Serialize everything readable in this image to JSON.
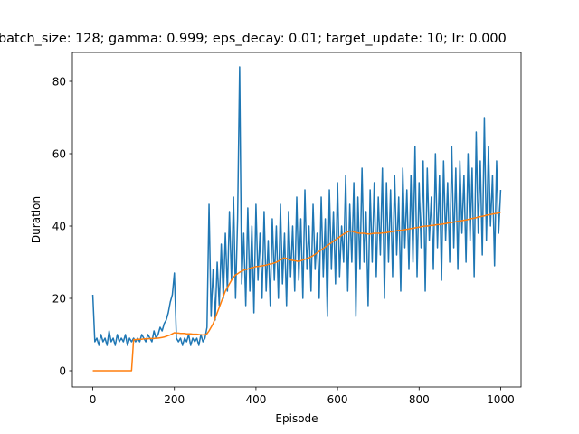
{
  "chart_data": {
    "type": "line",
    "title": "batch_size: 128; gamma: 0.999; eps_decay: 0.01; target_update: 10; lr: 0.000",
    "x_label": "Episode",
    "y_label": "Duration",
    "x": [
      0,
      5,
      10,
      15,
      20,
      25,
      30,
      35,
      40,
      45,
      50,
      55,
      60,
      65,
      70,
      75,
      80,
      85,
      90,
      95,
      100,
      105,
      110,
      115,
      120,
      125,
      130,
      135,
      140,
      145,
      150,
      155,
      160,
      165,
      170,
      175,
      180,
      185,
      190,
      195,
      200,
      205,
      210,
      215,
      220,
      225,
      230,
      235,
      240,
      245,
      250,
      255,
      260,
      265,
      270,
      275,
      280,
      285,
      290,
      295,
      300,
      305,
      310,
      315,
      320,
      325,
      330,
      335,
      340,
      345,
      350,
      355,
      360,
      365,
      370,
      375,
      380,
      385,
      390,
      395,
      400,
      405,
      410,
      415,
      420,
      425,
      430,
      435,
      440,
      445,
      450,
      455,
      460,
      465,
      470,
      475,
      480,
      485,
      490,
      495,
      500,
      505,
      510,
      515,
      520,
      525,
      530,
      535,
      540,
      545,
      550,
      555,
      560,
      565,
      570,
      575,
      580,
      585,
      590,
      595,
      600,
      605,
      610,
      615,
      620,
      625,
      630,
      635,
      640,
      645,
      650,
      655,
      660,
      665,
      670,
      675,
      680,
      685,
      690,
      695,
      700,
      705,
      710,
      715,
      720,
      725,
      730,
      735,
      740,
      745,
      750,
      755,
      760,
      765,
      770,
      775,
      780,
      785,
      790,
      795,
      800,
      805,
      810,
      815,
      820,
      825,
      830,
      835,
      840,
      845,
      850,
      855,
      860,
      865,
      870,
      875,
      880,
      885,
      890,
      895,
      900,
      905,
      910,
      915,
      920,
      925,
      930,
      935,
      940,
      945,
      950,
      955,
      960,
      965,
      970,
      975,
      980,
      985,
      990,
      995,
      1000
    ],
    "series": [
      {
        "color": "#1f77b4",
        "values": [
          21,
          8,
          9,
          7,
          10,
          8,
          9,
          7,
          11,
          8,
          9,
          7,
          10,
          8,
          9,
          8,
          10,
          7,
          9,
          8,
          9,
          8,
          9,
          8,
          10,
          9,
          8,
          10,
          9,
          8,
          11,
          9,
          10,
          12,
          11,
          13,
          14,
          16,
          19,
          21,
          27,
          9,
          8,
          9,
          7,
          9,
          8,
          10,
          7,
          9,
          8,
          9,
          7,
          10,
          8,
          9,
          12,
          46,
          15,
          28,
          14,
          30,
          18,
          35,
          20,
          38,
          22,
          44,
          25,
          48,
          20,
          42,
          84,
          24,
          38,
          18,
          45,
          22,
          40,
          16,
          46,
          25,
          38,
          20,
          44,
          22,
          36,
          18,
          42,
          25,
          40,
          20,
          46,
          24,
          38,
          18,
          44,
          26,
          40,
          22,
          48,
          25,
          42,
          20,
          50,
          28,
          40,
          22,
          46,
          28,
          38,
          20,
          48,
          26,
          42,
          15,
          50,
          28,
          44,
          24,
          52,
          26,
          40,
          30,
          54,
          22,
          46,
          30,
          52,
          15,
          48,
          28,
          56,
          30,
          44,
          18,
          50,
          30,
          52,
          26,
          48,
          32,
          56,
          20,
          52,
          30,
          50,
          26,
          54,
          32,
          48,
          22,
          56,
          34,
          50,
          28,
          54,
          30,
          62,
          26,
          52,
          34,
          58,
          22,
          56,
          36,
          48,
          28,
          60,
          34,
          54,
          25,
          58,
          36,
          52,
          30,
          62,
          34,
          56,
          28,
          58,
          38,
          54,
          30,
          60,
          36,
          56,
          26,
          66,
          38,
          58,
          32,
          70,
          36,
          62,
          40,
          54,
          29,
          58,
          38,
          50
        ]
      },
      {
        "color": "#ff7f0e",
        "values": [
          0,
          0,
          0,
          0,
          0,
          0,
          0,
          0,
          0,
          0,
          0,
          0,
          0,
          0,
          0,
          0,
          0,
          0,
          0,
          0,
          8.6,
          8.6,
          8.7,
          8.7,
          8.7,
          8.8,
          8.8,
          8.8,
          8.9,
          8.9,
          8.9,
          9,
          9,
          9.1,
          9.2,
          9.3,
          9.5,
          9.7,
          9.9,
          10.2,
          10.5,
          10.4,
          10.4,
          10.3,
          10.3,
          10.3,
          10.2,
          10.2,
          10.2,
          10.1,
          10.1,
          10.1,
          10,
          9.9,
          9.9,
          9.9,
          10.2,
          11,
          12,
          13,
          14.5,
          16,
          17.5,
          19,
          20.5,
          22,
          23,
          24,
          25,
          25.8,
          26.5,
          26.8,
          27.2,
          27.5,
          27.8,
          28,
          28.1,
          28.3,
          28.5,
          28.6,
          28.8,
          28.8,
          28.9,
          29,
          29.1,
          29.2,
          29.4,
          29.5,
          29.6,
          29.8,
          30,
          30.3,
          30.6,
          31,
          31.2,
          31,
          30.8,
          30.6,
          30.5,
          30.4,
          30.3,
          30.2,
          30.4,
          30.6,
          30.8,
          31,
          31.2,
          31.5,
          31.8,
          32.2,
          32.6,
          33,
          33.4,
          33.8,
          34.2,
          34.6,
          35,
          35.4,
          35.8,
          36.2,
          36.6,
          37,
          37.4,
          37.8,
          38.1,
          38.4,
          38.6,
          38.6,
          38.4,
          38.2,
          38.1,
          38,
          38,
          38,
          37.9,
          37.8,
          37.8,
          37.9,
          38,
          38,
          38,
          38,
          38.1,
          38.1,
          38.2,
          38.3,
          38.4,
          38.5,
          38.6,
          38.7,
          38.8,
          38.8,
          38.9,
          39,
          39.1,
          39.2,
          39.3,
          39.4,
          39.5,
          39.6,
          39.7,
          39.8,
          39.9,
          40,
          40,
          40.1,
          40.2,
          40.2,
          40.3,
          40.4,
          40.4,
          40.5,
          40.6,
          40.7,
          40.8,
          40.9,
          41,
          41.1,
          41.2,
          41.3,
          41.4,
          41.5,
          41.6,
          41.7,
          41.8,
          42,
          42.1,
          42.2,
          42.3,
          42.5,
          42.6,
          42.7,
          42.8,
          43,
          43.1,
          43.2,
          43.3,
          43.4,
          43.5,
          43.6,
          43.8
        ]
      }
    ],
    "xlim": [
      -50,
      1050
    ],
    "ylim": [
      -4.5,
      88
    ],
    "xticks": [
      0,
      200,
      400,
      600,
      800,
      1000
    ],
    "yticks": [
      0,
      20,
      40,
      60,
      80
    ]
  }
}
